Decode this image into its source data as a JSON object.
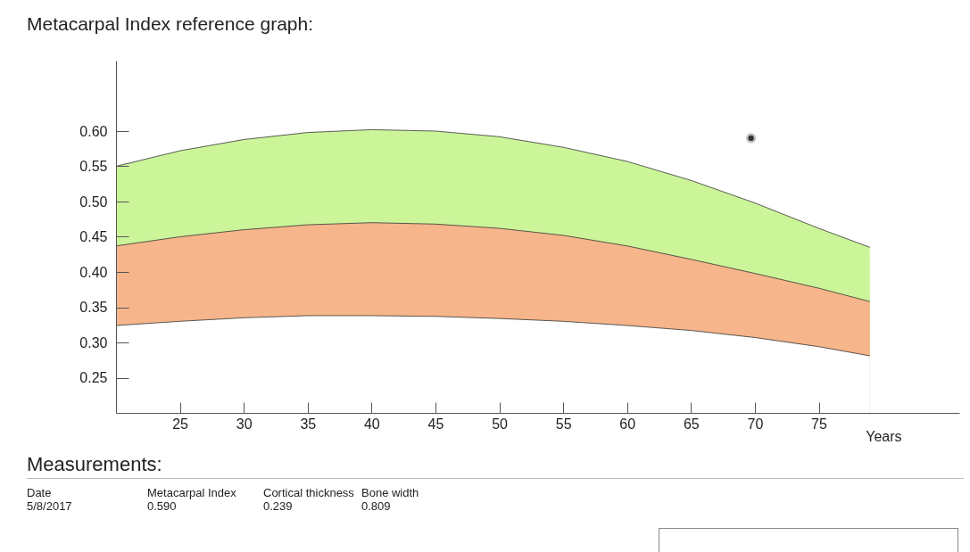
{
  "chart_data": {
    "type": "area",
    "title": "Metacarpal Index reference graph:",
    "xlabel": "Years",
    "x": [
      20,
      25,
      30,
      35,
      40,
      45,
      50,
      55,
      60,
      65,
      70,
      75,
      79
    ],
    "xlim": [
      20,
      86
    ],
    "xticks": [
      25,
      30,
      35,
      40,
      45,
      50,
      55,
      60,
      65,
      70,
      75
    ],
    "ylim": [
      0.2,
      0.7
    ],
    "yticks": [
      {
        "value": 0.25,
        "label": "0.25"
      },
      {
        "value": 0.3,
        "label": "0.30"
      },
      {
        "value": 0.35,
        "label": "0.35"
      },
      {
        "value": 0.4,
        "label": "0.40"
      },
      {
        "value": 0.45,
        "label": "0.45"
      },
      {
        "value": 0.5,
        "label": "0.50"
      },
      {
        "value": 0.55,
        "label": "0.55"
      },
      {
        "value": 0.6,
        "label": "0.60"
      }
    ],
    "grid": false,
    "series": [
      {
        "color": "#ccf59a",
        "values": [
          0.55,
          0.572,
          0.588,
          0.598,
          0.602,
          0.6,
          0.592,
          0.577,
          0.557,
          0.53,
          0.498,
          0.462,
          0.435
        ]
      },
      {
        "color": "#f6b58a",
        "values": [
          0.437,
          0.45,
          0.46,
          0.467,
          0.47,
          0.468,
          0.462,
          0.452,
          0.437,
          0.418,
          0.398,
          0.377,
          0.358
        ]
      },
      {
        "color": "#ffffff",
        "values": [
          0.324,
          0.33,
          0.335,
          0.338,
          0.338,
          0.337,
          0.334,
          0.33,
          0.324,
          0.317,
          0.307,
          0.294,
          0.281
        ]
      },
      {
        "type": "scatter",
        "marker": "circle",
        "color": "#222222",
        "x": [
          69.7
        ],
        "values": [
          0.59
        ]
      }
    ],
    "annotations": [
      "Measurements:",
      "Date",
      "Metacarpal Index",
      "Cortical thickness",
      "Bone width",
      "5/8/2017",
      "0.590",
      "0.239",
      "0.809"
    ]
  }
}
